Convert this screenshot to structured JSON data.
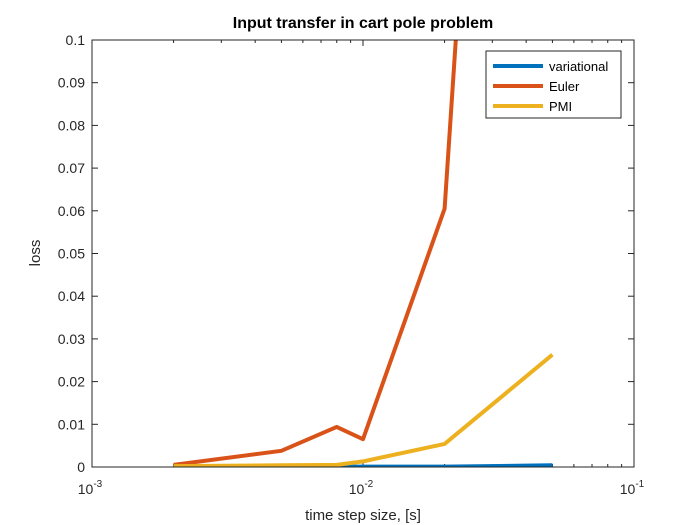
{
  "chart_data": {
    "type": "line",
    "title": "Input transfer in cart pole problem",
    "xlabel": "time step size, [s]",
    "ylabel": "loss",
    "xscale": "log",
    "xlim": [
      0.001,
      0.1
    ],
    "ylim": [
      0,
      0.1
    ],
    "x_ticks": [
      {
        "value": 0.001,
        "base": "10",
        "exp": "-3"
      },
      {
        "value": 0.01,
        "base": "10",
        "exp": "-2"
      },
      {
        "value": 0.1,
        "base": "10",
        "exp": "-1"
      }
    ],
    "y_ticks": [
      "0",
      "0.01",
      "0.02",
      "0.03",
      "0.04",
      "0.05",
      "0.06",
      "0.07",
      "0.08",
      "0.09",
      "0.1"
    ],
    "grid": false,
    "legend_position": "top-right",
    "series": [
      {
        "name": "variational",
        "color": "#0072BD",
        "x": [
          0.002,
          0.005,
          0.008,
          0.01,
          0.02,
          0.05
        ],
        "y": [
          0.0001,
          0.0001,
          0.0001,
          0.0001,
          0.0001,
          0.0004
        ]
      },
      {
        "name": "Euler",
        "color": "#D95319",
        "x": [
          0.002,
          0.005,
          0.008,
          0.01,
          0.02,
          0.022
        ],
        "y": [
          0.0005,
          0.0038,
          0.0094,
          0.0065,
          0.0605,
          0.1
        ]
      },
      {
        "name": "PMI",
        "color": "#EDB120",
        "x": [
          0.002,
          0.005,
          0.008,
          0.01,
          0.02,
          0.05
        ],
        "y": [
          0.0002,
          0.0004,
          0.0005,
          0.0013,
          0.0054,
          0.0263
        ]
      }
    ]
  }
}
